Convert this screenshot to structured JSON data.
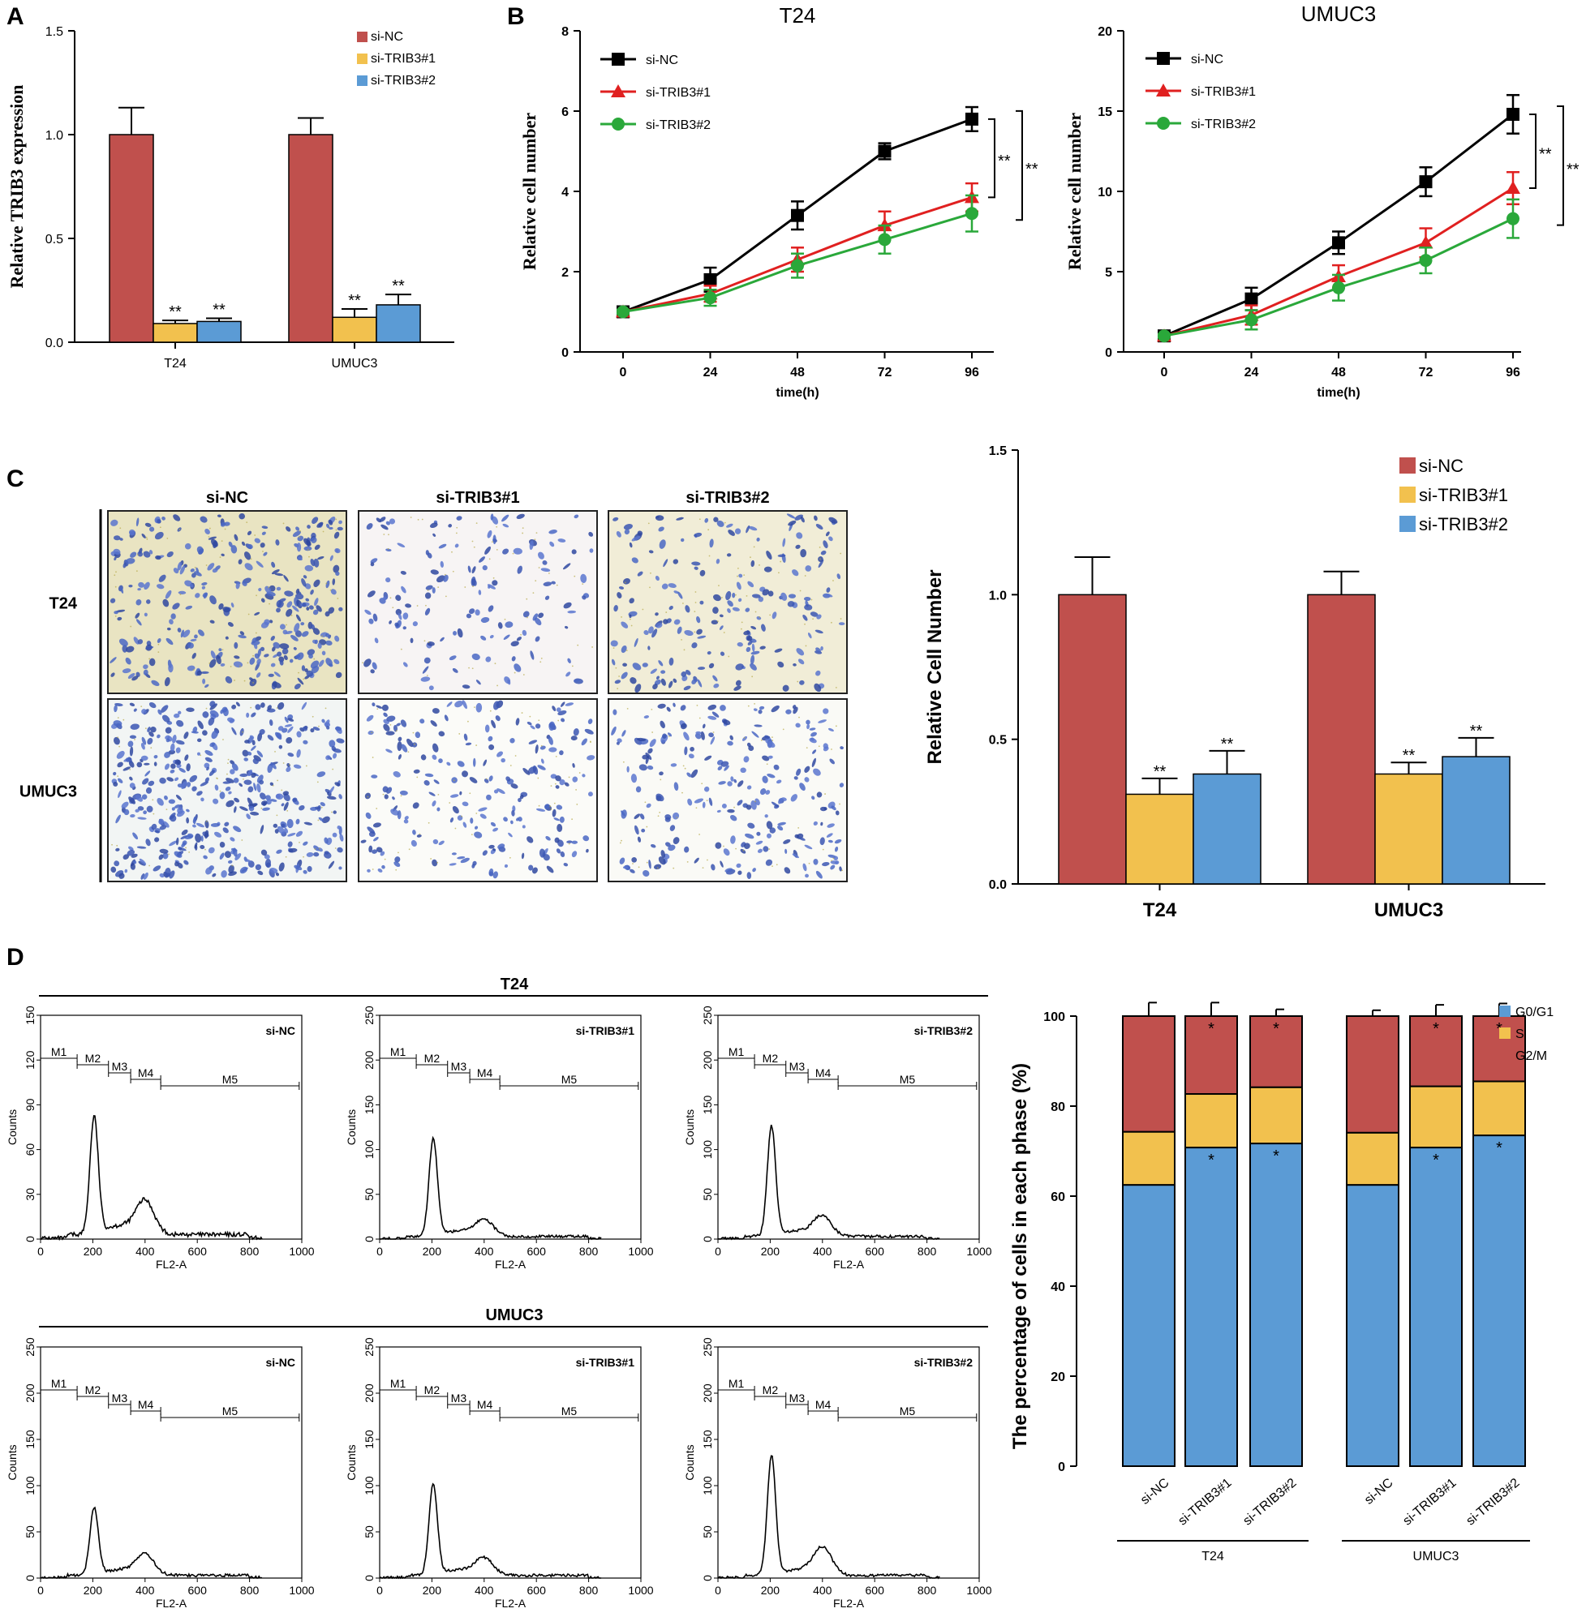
{
  "colors": {
    "si_nc_bar": "#c0504d",
    "si1_bar": "#f2c14e",
    "si2_bar": "#5b9bd5",
    "line_nc": "#000000",
    "line_si1": "#e02020",
    "line_si2": "#2aa83a",
    "g0g1": "#5b9bd5",
    "s": "#f2c14e",
    "g2m": "#c0504d"
  },
  "panels": {
    "a": "A",
    "b": "B",
    "c": "C",
    "d": "D"
  },
  "chart_data": [
    {
      "id": "A",
      "type": "bar",
      "ylabel": "Relative TRIB3 expression",
      "xlabel": "",
      "ylim": [
        0,
        1.5
      ],
      "yticks": [
        "0.0",
        "0.5",
        "1.0",
        "1.5"
      ],
      "categories": [
        "T24",
        "UMUC3"
      ],
      "series": [
        {
          "name": "si-NC",
          "values": [
            1.0,
            1.0
          ],
          "errors": [
            0.13,
            0.08
          ],
          "sig": [
            "",
            ""
          ]
        },
        {
          "name": "si-TRIB3#1",
          "values": [
            0.09,
            0.12
          ],
          "errors": [
            0.015,
            0.04
          ],
          "sig": [
            "**",
            "**"
          ]
        },
        {
          "name": "si-TRIB3#2",
          "values": [
            0.1,
            0.18
          ],
          "errors": [
            0.015,
            0.05
          ],
          "sig": [
            "**",
            "**"
          ]
        }
      ]
    },
    {
      "id": "B1",
      "type": "line",
      "title": "T24",
      "xlabel": "time(h)",
      "ylabel": "Relative cell number",
      "ylim": [
        0,
        8
      ],
      "yticks": [
        "0",
        "2",
        "4",
        "6",
        "8"
      ],
      "x": [
        0,
        24,
        48,
        72,
        96
      ],
      "series": [
        {
          "name": "si-NC",
          "values": [
            1.0,
            1.8,
            3.4,
            5.0,
            5.8
          ],
          "errors": [
            0.05,
            0.3,
            0.35,
            0.2,
            0.3
          ]
        },
        {
          "name": "si-TRIB3#1",
          "values": [
            1.0,
            1.45,
            2.3,
            3.15,
            3.85
          ],
          "errors": [
            0.05,
            0.2,
            0.3,
            0.35,
            0.35
          ]
        },
        {
          "name": "si-TRIB3#2",
          "values": [
            1.0,
            1.35,
            2.15,
            2.8,
            3.45
          ],
          "errors": [
            0.05,
            0.2,
            0.3,
            0.35,
            0.45
          ]
        }
      ],
      "sig": [
        "**",
        "**"
      ]
    },
    {
      "id": "B2",
      "type": "line",
      "title": "UMUC3",
      "xlabel": "time(h)",
      "ylabel": "Relative cell number",
      "ylim": [
        0,
        20
      ],
      "yticks": [
        "0",
        "5",
        "10",
        "15",
        "20"
      ],
      "x": [
        0,
        24,
        48,
        72,
        96
      ],
      "series": [
        {
          "name": "si-NC",
          "values": [
            1.0,
            3.3,
            6.8,
            10.6,
            14.8
          ],
          "errors": [
            0.1,
            0.7,
            0.7,
            0.9,
            1.2
          ]
        },
        {
          "name": "si-TRIB3#1",
          "values": [
            1.0,
            2.3,
            4.7,
            6.8,
            10.2
          ],
          "errors": [
            0.1,
            0.6,
            0.7,
            0.9,
            1.0
          ]
        },
        {
          "name": "si-TRIB3#2",
          "values": [
            1.0,
            2.0,
            4.0,
            5.7,
            8.3
          ],
          "errors": [
            0.1,
            0.6,
            0.8,
            0.8,
            1.2
          ]
        }
      ],
      "sig": [
        "**",
        "**"
      ]
    },
    {
      "id": "C",
      "type": "bar",
      "ylabel": "Relative Cell Number",
      "xlabel": "",
      "ylim": [
        0,
        1.5
      ],
      "yticks": [
        "0.0",
        "0.5",
        "1.0",
        "1.5"
      ],
      "categories": [
        "T24",
        "UMUC3"
      ],
      "series": [
        {
          "name": "si-NC",
          "values": [
            1.0,
            1.0
          ],
          "errors": [
            0.13,
            0.08
          ],
          "sig": [
            "",
            ""
          ]
        },
        {
          "name": "si-TRIB3#1",
          "values": [
            0.31,
            0.38
          ],
          "errors": [
            0.055,
            0.04
          ],
          "sig": [
            "**",
            "**"
          ]
        },
        {
          "name": "si-TRIB3#2",
          "values": [
            0.38,
            0.44
          ],
          "errors": [
            0.08,
            0.065
          ],
          "sig": [
            "**",
            "**"
          ]
        }
      ]
    },
    {
      "id": "D",
      "type": "bar",
      "stacked": true,
      "ylabel": "The percentage of cells in each phase (%)",
      "xlabel": "",
      "ylim": [
        0,
        100
      ],
      "yticks": [
        "0",
        "20",
        "40",
        "60",
        "80",
        "100"
      ],
      "categories": [
        "si-NC",
        "si-TRIB3#1",
        "si-TRIB3#2",
        "si-NC",
        "si-TRIB3#1",
        "si-TRIB3#2"
      ],
      "groups": [
        "T24",
        "UMUC3"
      ],
      "series": [
        {
          "name": "G0/G1",
          "values": [
            62.5,
            70.8,
            71.7,
            62.5,
            70.8,
            73.5
          ],
          "errors": [
            0.8,
            0.7,
            1.7,
            0.8,
            0.7,
            3.0
          ],
          "sig": [
            "",
            "*",
            "*",
            "",
            "*",
            "*"
          ]
        },
        {
          "name": "S",
          "values": [
            11.8,
            11.9,
            12.5,
            11.6,
            13.6,
            12.0
          ],
          "errors": [
            3.0,
            3.0,
            1.0,
            0.8,
            1.5,
            0.4
          ],
          "sig": [
            "",
            "",
            "",
            "",
            "",
            ""
          ]
        },
        {
          "name": "G2/M",
          "values": [
            25.7,
            17.3,
            15.8,
            25.9,
            15.6,
            14.5
          ],
          "errors": [
            3.0,
            3.0,
            1.5,
            1.3,
            2.5,
            2.8
          ],
          "sig": [
            "",
            "*",
            "*",
            "",
            "*",
            "*"
          ]
        }
      ]
    }
  ],
  "panel_c_images": {
    "col_labels": [
      "si-NC",
      "si-TRIB3#1",
      "si-TRIB3#2"
    ],
    "row_labels": [
      "T24",
      "UMUC3"
    ]
  },
  "panel_d_hist": {
    "row_titles": [
      "T24",
      "UMUC3"
    ],
    "xlabel": "FL2-A",
    "ylabel": "Counts",
    "xticks": [
      "0",
      "200",
      "400",
      "600",
      "800",
      "1000"
    ],
    "gates": [
      "M1",
      "M2",
      "M3",
      "M4",
      "M5"
    ],
    "plots": [
      {
        "label": "si-NC",
        "ymax": 150,
        "yticks": [
          "0",
          "30",
          "60",
          "90",
          "120",
          "150"
        ],
        "peak1": 78,
        "peak2": 22
      },
      {
        "label": "si-TRIB3#1",
        "ymax": 250,
        "yticks": [
          "0",
          "50",
          "100",
          "150",
          "200",
          "250"
        ],
        "peak1": 108,
        "peak2": 18
      },
      {
        "label": "si-TRIB3#2",
        "ymax": 250,
        "yticks": [
          "0",
          "50",
          "100",
          "150",
          "200",
          "250"
        ],
        "peak1": 122,
        "peak2": 22
      },
      {
        "label": "si-NC",
        "ymax": 250,
        "yticks": [
          "0",
          "50",
          "100",
          "150",
          "200",
          "250"
        ],
        "peak1": 72,
        "peak2": 22
      },
      {
        "label": "si-TRIB3#1",
        "ymax": 250,
        "yticks": [
          "0",
          "50",
          "100",
          "150",
          "200",
          "250"
        ],
        "peak1": 98,
        "peak2": 18
      },
      {
        "label": "si-TRIB3#2",
        "ymax": 250,
        "yticks": [
          "0",
          "50",
          "100",
          "150",
          "200",
          "250"
        ],
        "peak1": 128,
        "peak2": 30
      }
    ]
  }
}
